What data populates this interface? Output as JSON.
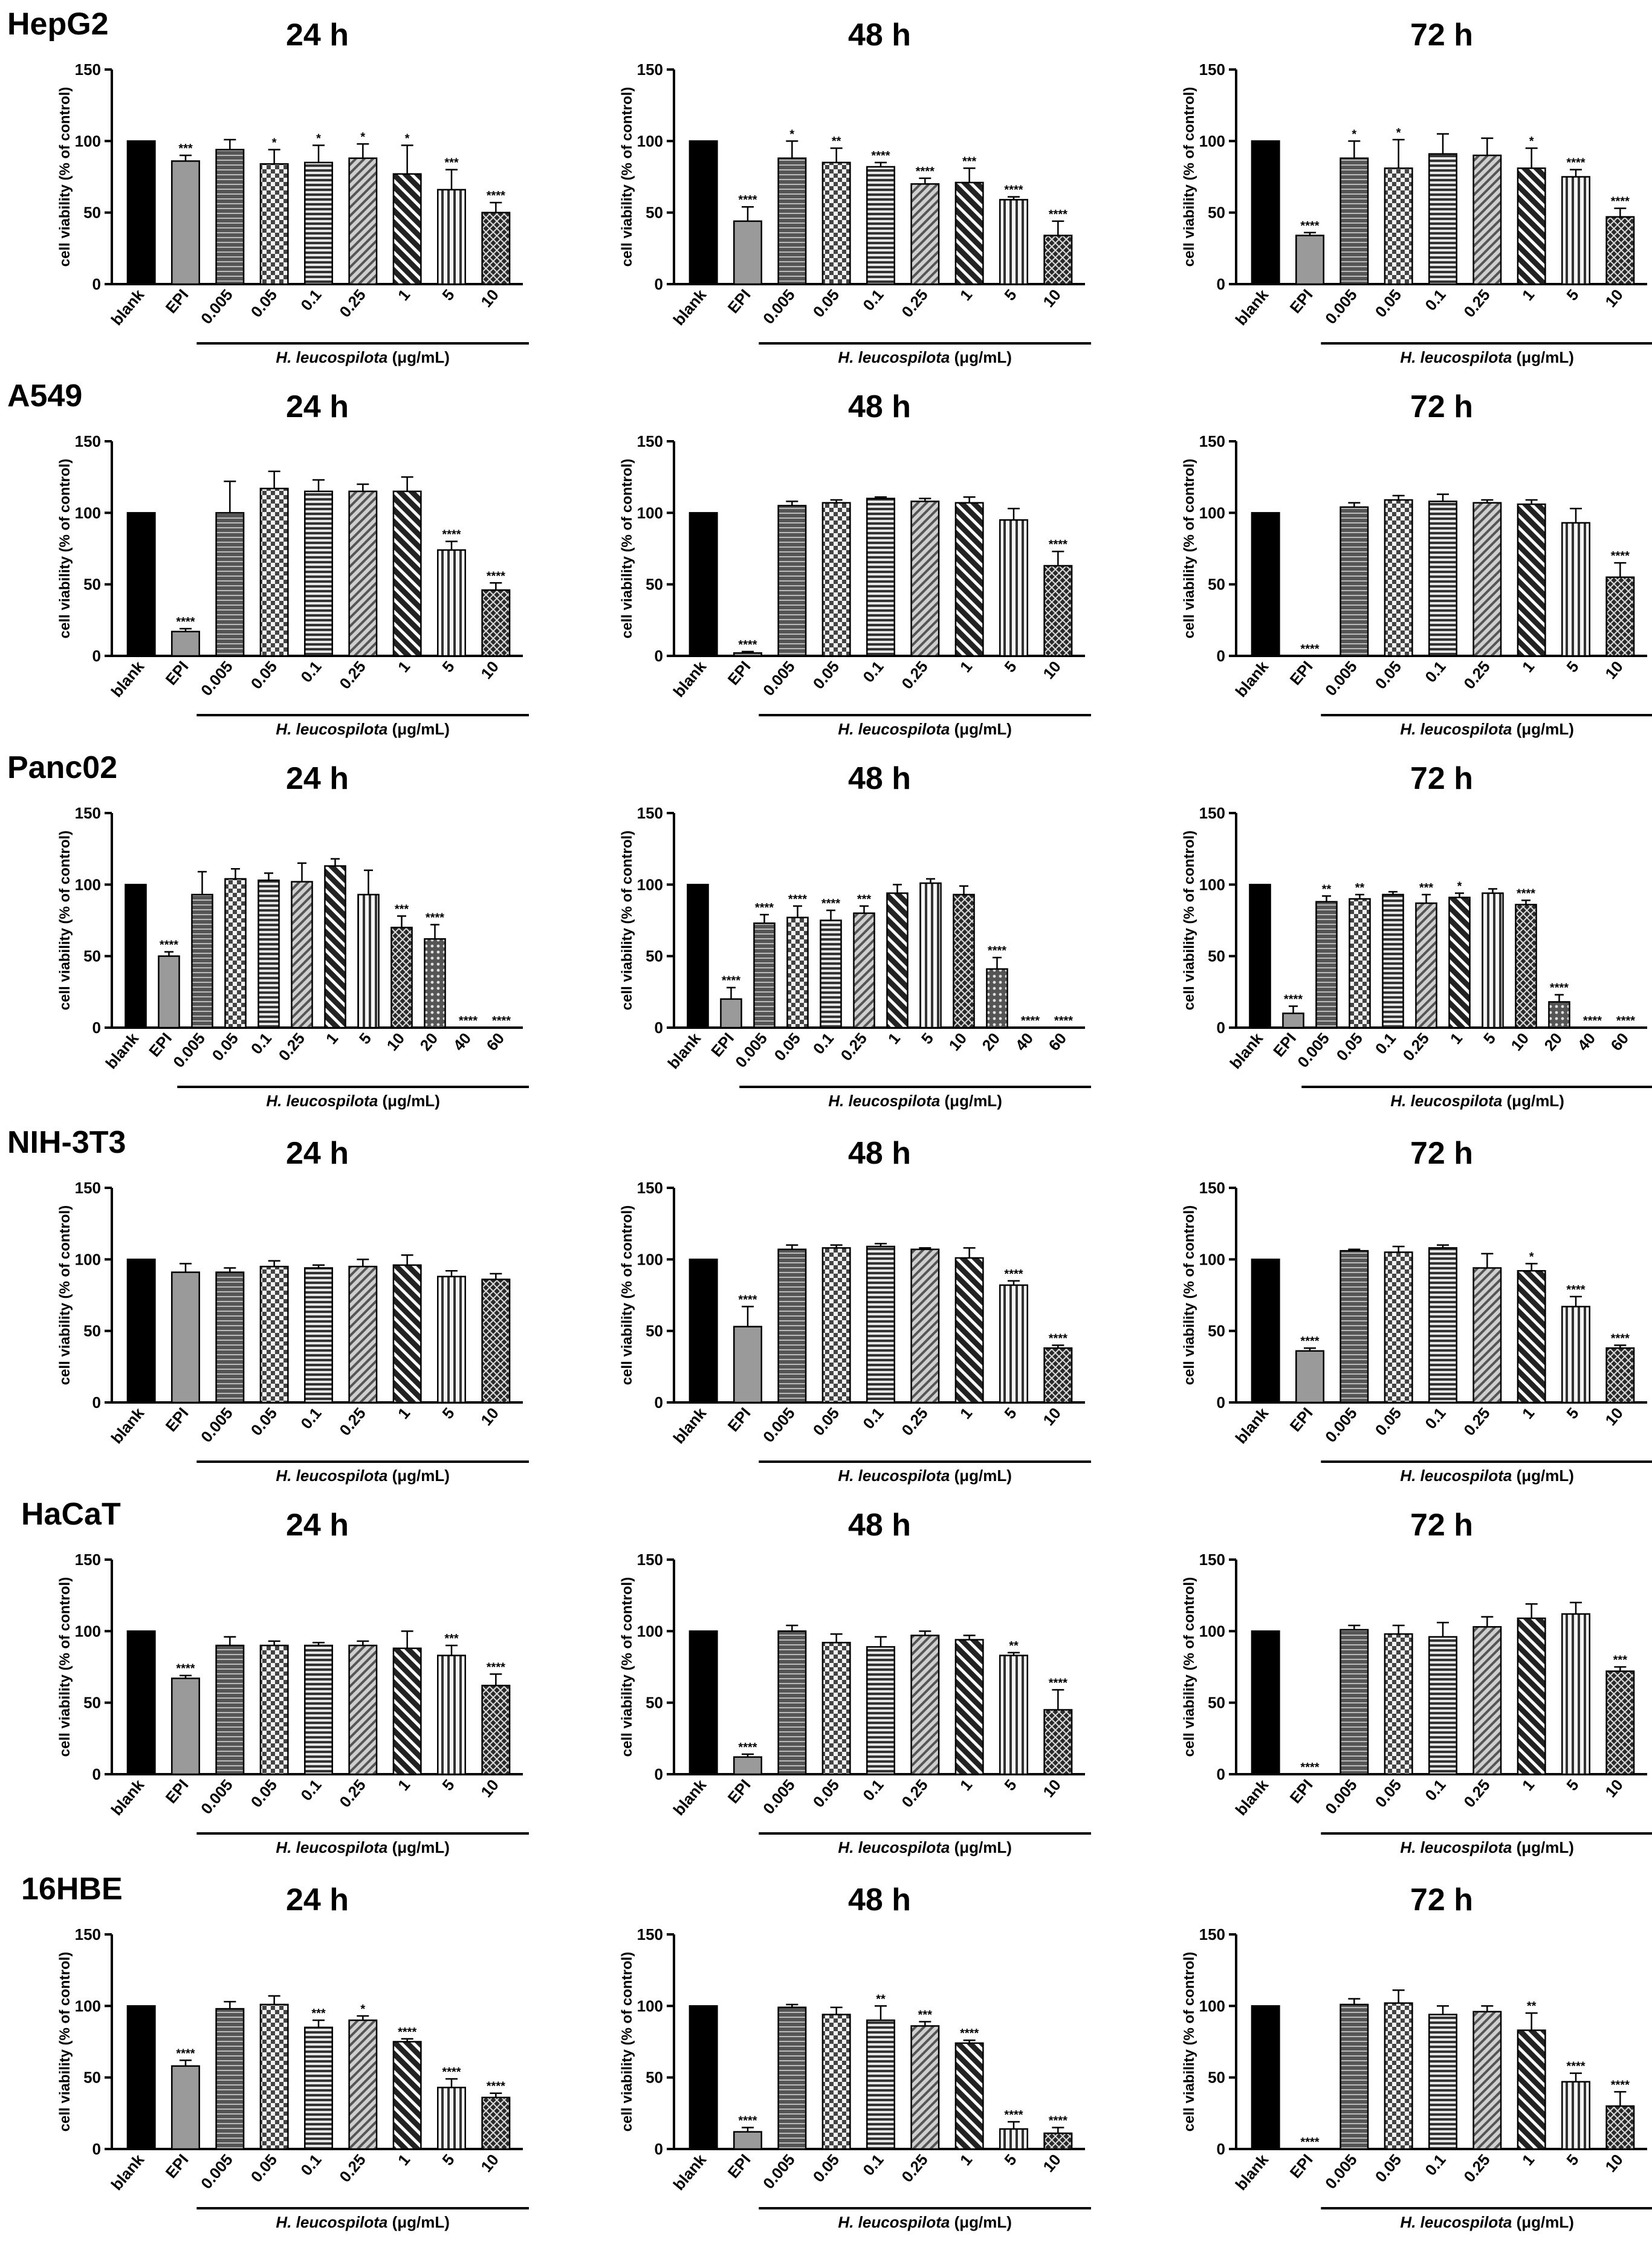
{
  "figure": {
    "ylabel": "cell viability (% of control)",
    "xlabel_species": "H. leucospilota",
    "xlabel_unit": " (μg/mL)",
    "y_ticks": [
      "0",
      "50",
      "100",
      "150"
    ],
    "rows": [
      {
        "cell_line": "HepG2"
      },
      {
        "cell_line": "A549"
      },
      {
        "cell_line": "Panc02"
      },
      {
        "cell_line": "NIH-3T3"
      },
      {
        "cell_line": "HaCaT"
      },
      {
        "cell_line": "16HBE"
      }
    ]
  },
  "chart_data": [
    {
      "type": "bar",
      "row": "HepG2",
      "title": "24 h",
      "xlabel": "H. leucospilota (μg/mL)",
      "ylabel": "cell viability (% of control)",
      "ylim": [
        0,
        150
      ],
      "categories": [
        "blank",
        "EPI",
        "0.005",
        "0.05",
        "0.1",
        "0.25",
        "1",
        "5",
        "10"
      ],
      "values": [
        100,
        86,
        94,
        84,
        85,
        88,
        77,
        66,
        50
      ],
      "errors": [
        0,
        4,
        7,
        10,
        12,
        10,
        20,
        14,
        7
      ],
      "significance": [
        "",
        "***",
        "",
        "*",
        "*",
        "*",
        "*",
        "***",
        "****"
      ]
    },
    {
      "type": "bar",
      "row": "HepG2",
      "title": "48 h",
      "xlabel": "H. leucospilota (μg/mL)",
      "ylabel": "cell viability (% of control)",
      "ylim": [
        0,
        150
      ],
      "categories": [
        "blank",
        "EPI",
        "0.005",
        "0.05",
        "0.1",
        "0.25",
        "1",
        "5",
        "10"
      ],
      "values": [
        100,
        44,
        88,
        85,
        82,
        70,
        71,
        59,
        34
      ],
      "errors": [
        0,
        10,
        12,
        10,
        3,
        4,
        10,
        2,
        10
      ],
      "significance": [
        "",
        "****",
        "*",
        "**",
        "****",
        "****",
        "***",
        "****",
        "****"
      ]
    },
    {
      "type": "bar",
      "row": "HepG2",
      "title": "72 h",
      "xlabel": "H. leucospilota (μg/mL)",
      "ylabel": "cell viability (% of control)",
      "ylim": [
        0,
        150
      ],
      "categories": [
        "blank",
        "EPI",
        "0.005",
        "0.05",
        "0.1",
        "0.25",
        "1",
        "5",
        "10"
      ],
      "values": [
        100,
        34,
        88,
        81,
        91,
        90,
        81,
        75,
        47
      ],
      "errors": [
        0,
        2,
        12,
        20,
        14,
        12,
        14,
        5,
        6
      ],
      "significance": [
        "",
        "****",
        "*",
        "*",
        "",
        "",
        "*",
        "****",
        "****"
      ]
    },
    {
      "type": "bar",
      "row": "A549",
      "title": "24 h",
      "xlabel": "H. leucospilota (μg/mL)",
      "ylabel": "cell viability (% of control)",
      "ylim": [
        0,
        150
      ],
      "categories": [
        "blank",
        "EPI",
        "0.005",
        "0.05",
        "0.1",
        "0.25",
        "1",
        "5",
        "10"
      ],
      "values": [
        100,
        17,
        100,
        117,
        115,
        115,
        115,
        74,
        46
      ],
      "errors": [
        0,
        2,
        22,
        12,
        8,
        5,
        10,
        6,
        5
      ],
      "significance": [
        "",
        "****",
        "",
        "",
        "",
        "",
        "",
        "****",
        "****"
      ]
    },
    {
      "type": "bar",
      "row": "A549",
      "title": "48 h",
      "xlabel": "H. leucospilota (μg/mL)",
      "ylabel": "cell viability (% of control)",
      "ylim": [
        0,
        150
      ],
      "categories": [
        "blank",
        "EPI",
        "0.005",
        "0.05",
        "0.1",
        "0.25",
        "1",
        "5",
        "10"
      ],
      "values": [
        100,
        2,
        105,
        107,
        110,
        108,
        107,
        95,
        63
      ],
      "errors": [
        0,
        1,
        3,
        2,
        1,
        2,
        4,
        8,
        10
      ],
      "significance": [
        "",
        "****",
        "",
        "",
        "",
        "",
        "",
        "",
        "****"
      ]
    },
    {
      "type": "bar",
      "row": "A549",
      "title": "72 h",
      "xlabel": "H. leucospilota (μg/mL)",
      "ylabel": "cell viability (% of control)",
      "ylim": [
        0,
        150
      ],
      "categories": [
        "blank",
        "EPI",
        "0.005",
        "0.05",
        "0.1",
        "0.25",
        "1",
        "5",
        "10"
      ],
      "values": [
        100,
        0,
        104,
        109,
        108,
        107,
        106,
        93,
        55
      ],
      "errors": [
        0,
        0,
        3,
        3,
        5,
        2,
        3,
        10,
        10
      ],
      "significance": [
        "",
        "****",
        "",
        "",
        "",
        "",
        "",
        "",
        "****"
      ]
    },
    {
      "type": "bar",
      "row": "Panc02",
      "title": "24 h",
      "xlabel": "H. leucospilota (μg/mL)",
      "ylabel": "cell viability (% of control)",
      "ylim": [
        0,
        150
      ],
      "categories": [
        "blank",
        "EPI",
        "0.005",
        "0.05",
        "0.1",
        "0.25",
        "1",
        "5",
        "10",
        "20",
        "40",
        "60"
      ],
      "values": [
        100,
        50,
        93,
        104,
        103,
        102,
        113,
        93,
        70,
        62,
        0,
        0
      ],
      "errors": [
        0,
        3,
        16,
        7,
        5,
        13,
        5,
        17,
        8,
        10,
        0,
        0
      ],
      "significance": [
        "",
        "****",
        "",
        "",
        "",
        "",
        "",
        "",
        "***",
        "****",
        "****",
        "****"
      ]
    },
    {
      "type": "bar",
      "row": "Panc02",
      "title": "48 h",
      "xlabel": "H. leucospilota (μg/mL)",
      "ylabel": "cell viability (% of control)",
      "ylim": [
        0,
        150
      ],
      "categories": [
        "blank",
        "EPI",
        "0.005",
        "0.05",
        "0.1",
        "0.25",
        "1",
        "5",
        "10",
        "20",
        "40",
        "60"
      ],
      "values": [
        100,
        20,
        73,
        77,
        75,
        80,
        94,
        101,
        93,
        41,
        0,
        0
      ],
      "errors": [
        0,
        8,
        6,
        8,
        7,
        5,
        6,
        3,
        6,
        8,
        0,
        0
      ],
      "significance": [
        "",
        "****",
        "****",
        "****",
        "****",
        "***",
        "",
        "",
        "",
        "****",
        "****",
        "****"
      ]
    },
    {
      "type": "bar",
      "row": "Panc02",
      "title": "72 h",
      "xlabel": "H. leucospilota (μg/mL)",
      "ylabel": "cell viability (% of control)",
      "ylim": [
        0,
        150
      ],
      "categories": [
        "blank",
        "EPI",
        "0.005",
        "0.05",
        "0.1",
        "0.25",
        "1",
        "5",
        "10",
        "20",
        "40",
        "60"
      ],
      "values": [
        100,
        10,
        88,
        90,
        93,
        87,
        91,
        94,
        86,
        18,
        0,
        0
      ],
      "errors": [
        0,
        5,
        4,
        3,
        2,
        6,
        3,
        3,
        3,
        5,
        0,
        0
      ],
      "significance": [
        "",
        "****",
        "**",
        "**",
        "",
        "***",
        "*",
        "",
        "****",
        "****",
        "****",
        "****"
      ]
    },
    {
      "type": "bar",
      "row": "NIH-3T3",
      "title": "24 h",
      "xlabel": "H. leucospilota (μg/mL)",
      "ylabel": "cell viability (% of control)",
      "ylim": [
        0,
        150
      ],
      "categories": [
        "blank",
        "EPI",
        "0.005",
        "0.05",
        "0.1",
        "0.25",
        "1",
        "5",
        "10"
      ],
      "values": [
        100,
        91,
        91,
        95,
        94,
        95,
        96,
        88,
        86
      ],
      "errors": [
        0,
        6,
        3,
        4,
        2,
        5,
        7,
        4,
        4
      ],
      "significance": [
        "",
        "",
        "",
        "",
        "",
        "",
        "",
        "",
        ""
      ]
    },
    {
      "type": "bar",
      "row": "NIH-3T3",
      "title": "48 h",
      "xlabel": "H. leucospilota (μg/mL)",
      "ylabel": "cell viability (% of control)",
      "ylim": [
        0,
        150
      ],
      "categories": [
        "blank",
        "EPI",
        "0.005",
        "0.05",
        "0.1",
        "0.25",
        "1",
        "5",
        "10"
      ],
      "values": [
        100,
        53,
        107,
        108,
        109,
        107,
        101,
        82,
        38
      ],
      "errors": [
        0,
        14,
        3,
        2,
        2,
        1,
        7,
        3,
        2
      ],
      "significance": [
        "",
        "****",
        "",
        "",
        "",
        "",
        "",
        "****",
        "****"
      ]
    },
    {
      "type": "bar",
      "row": "NIH-3T3",
      "title": "72 h",
      "xlabel": "H. leucospilota (μg/mL)",
      "ylabel": "cell viability (% of control)",
      "ylim": [
        0,
        150
      ],
      "categories": [
        "blank",
        "EPI",
        "0.005",
        "0.05",
        "0.1",
        "0.25",
        "1",
        "5",
        "10"
      ],
      "values": [
        100,
        36,
        106,
        105,
        108,
        94,
        92,
        67,
        38
      ],
      "errors": [
        0,
        2,
        1,
        4,
        2,
        10,
        5,
        7,
        2
      ],
      "significance": [
        "",
        "****",
        "",
        "",
        "",
        "",
        "*",
        "****",
        "****"
      ]
    },
    {
      "type": "bar",
      "row": "HaCaT",
      "title": "24 h",
      "xlabel": "H. leucospilota (μg/mL)",
      "ylabel": "cell viability (% of control)",
      "ylim": [
        0,
        150
      ],
      "categories": [
        "blank",
        "EPI",
        "0.005",
        "0.05",
        "0.1",
        "0.25",
        "1",
        "5",
        "10"
      ],
      "values": [
        100,
        67,
        90,
        90,
        90,
        90,
        88,
        83,
        62
      ],
      "errors": [
        0,
        2,
        6,
        3,
        2,
        3,
        12,
        7,
        8
      ],
      "significance": [
        "",
        "****",
        "",
        "",
        "",
        "",
        "",
        "***",
        "****"
      ]
    },
    {
      "type": "bar",
      "row": "HaCaT",
      "title": "48 h",
      "xlabel": "H. leucospilota (μg/mL)",
      "ylabel": "cell viability (% of control)",
      "ylim": [
        0,
        150
      ],
      "categories": [
        "blank",
        "EPI",
        "0.005",
        "0.05",
        "0.1",
        "0.25",
        "1",
        "5",
        "10"
      ],
      "values": [
        100,
        12,
        100,
        92,
        89,
        97,
        94,
        83,
        45
      ],
      "errors": [
        0,
        2,
        4,
        6,
        7,
        3,
        3,
        2,
        14
      ],
      "significance": [
        "",
        "****",
        "",
        "",
        "",
        "",
        "",
        "**",
        "****"
      ]
    },
    {
      "type": "bar",
      "row": "HaCaT",
      "title": "72 h",
      "xlabel": "H. leucospilota (μg/mL)",
      "ylabel": "cell viability (% of control)",
      "ylim": [
        0,
        150
      ],
      "categories": [
        "blank",
        "EPI",
        "0.005",
        "0.05",
        "0.1",
        "0.25",
        "1",
        "5",
        "10"
      ],
      "values": [
        100,
        0,
        101,
        98,
        96,
        103,
        109,
        112,
        72
      ],
      "errors": [
        0,
        0,
        3,
        6,
        10,
        7,
        10,
        8,
        3
      ],
      "significance": [
        "",
        "****",
        "",
        "",
        "",
        "",
        "",
        "",
        "***"
      ]
    },
    {
      "type": "bar",
      "row": "16HBE",
      "title": "24 h",
      "xlabel": "H. leucospilota (μg/mL)",
      "ylabel": "cell viability (% of control)",
      "ylim": [
        0,
        150
      ],
      "categories": [
        "blank",
        "EPI",
        "0.005",
        "0.05",
        "0.1",
        "0.25",
        "1",
        "5",
        "10"
      ],
      "values": [
        100,
        58,
        98,
        101,
        85,
        90,
        75,
        43,
        36
      ],
      "errors": [
        0,
        4,
        5,
        6,
        5,
        3,
        2,
        6,
        3
      ],
      "significance": [
        "",
        "****",
        "",
        "",
        "***",
        "*",
        "****",
        "****",
        "****"
      ]
    },
    {
      "type": "bar",
      "row": "16HBE",
      "title": "48 h",
      "xlabel": "H. leucospilota (μg/mL)",
      "ylabel": "cell viability (% of control)",
      "ylim": [
        0,
        150
      ],
      "categories": [
        "blank",
        "EPI",
        "0.005",
        "0.05",
        "0.1",
        "0.25",
        "1",
        "5",
        "10"
      ],
      "values": [
        100,
        12,
        99,
        94,
        90,
        86,
        74,
        14,
        11
      ],
      "errors": [
        0,
        3,
        2,
        5,
        10,
        3,
        2,
        5,
        4
      ],
      "significance": [
        "",
        "****",
        "",
        "",
        "**",
        "***",
        "****",
        "****",
        "****"
      ]
    },
    {
      "type": "bar",
      "row": "16HBE",
      "title": "72 h",
      "xlabel": "H. leucospilota (μg/mL)",
      "ylabel": "cell viability (% of control)",
      "ylim": [
        0,
        150
      ],
      "categories": [
        "blank",
        "EPI",
        "0.005",
        "0.05",
        "0.1",
        "0.25",
        "1",
        "5",
        "10"
      ],
      "values": [
        100,
        0,
        101,
        102,
        94,
        96,
        83,
        47,
        30
      ],
      "errors": [
        0,
        0,
        4,
        9,
        6,
        4,
        12,
        6,
        10
      ],
      "significance": [
        "",
        "****",
        "",
        "",
        "",
        "",
        "**",
        "****",
        "****"
      ]
    }
  ]
}
